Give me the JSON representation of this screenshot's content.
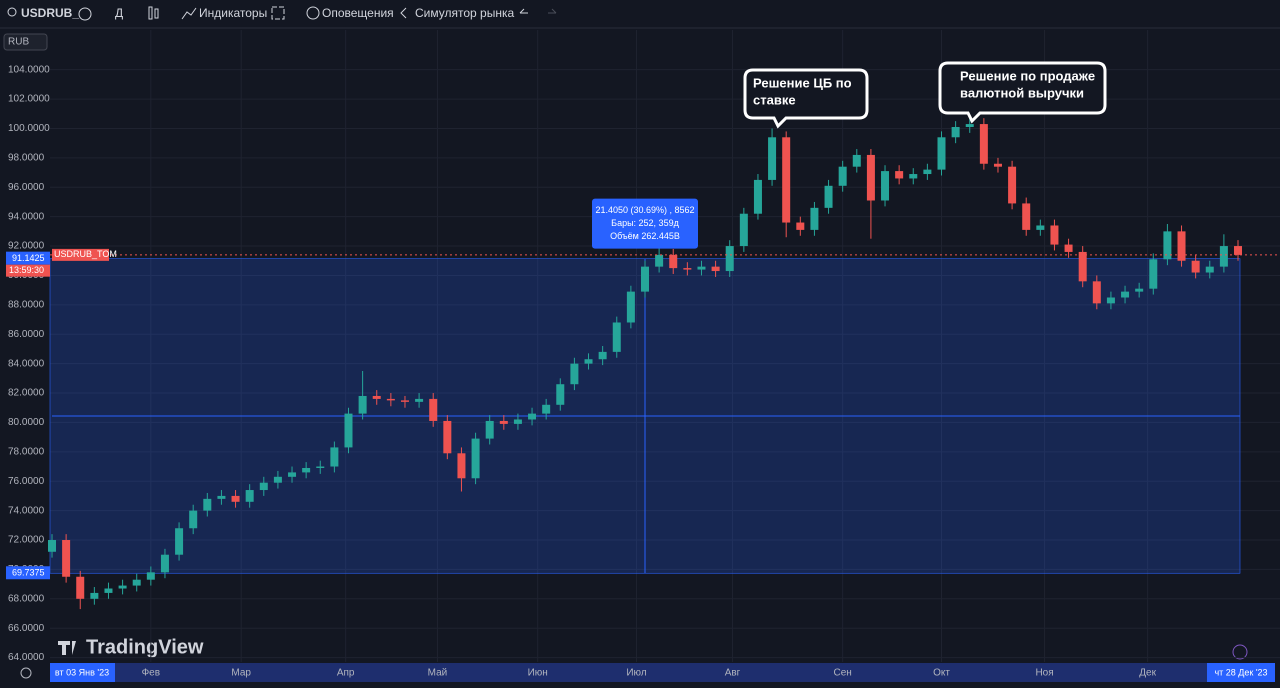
{
  "toolbar": {
    "symbol": "USDRUB_",
    "interval": "Д",
    "items": [
      "Индикаторы",
      "Оповещения",
      "Симулятор рынка"
    ]
  },
  "currency": "RUB",
  "brand": "TradingView",
  "chart_data": {
    "type": "candlestick",
    "symbol_label": "USDRUB_TOM",
    "countdown": "13:59:30",
    "open": [
      71.2,
      72.0,
      69.5,
      68.0,
      68.4,
      68.7,
      68.9,
      69.3,
      69.8,
      71.0,
      72.8,
      74.0,
      74.8,
      75.0,
      74.6,
      75.4,
      75.9,
      76.3,
      76.6,
      76.9,
      77.0,
      78.3,
      80.6,
      81.8,
      81.6,
      81.5,
      81.4,
      81.6,
      80.1,
      77.9,
      76.2,
      78.9,
      80.1,
      79.9,
      80.2,
      80.6,
      81.2,
      82.6,
      84.0,
      84.3,
      84.8,
      86.8,
      88.9,
      90.6,
      91.4,
      90.5,
      90.4,
      90.6,
      90.3,
      92.0,
      94.2,
      96.5,
      99.4,
      93.6,
      93.1,
      94.6,
      96.1,
      97.4,
      98.2,
      95.1,
      97.1,
      96.6,
      96.9,
      97.2,
      99.4,
      100.1,
      100.3,
      97.6,
      97.4,
      94.9,
      93.1,
      93.4,
      92.1,
      91.6,
      89.6,
      88.1,
      88.5,
      88.9,
      89.1,
      91.1,
      93.0,
      91.0,
      90.2,
      90.6,
      92.0
    ],
    "high": [
      72.4,
      72.4,
      69.9,
      68.8,
      69.1,
      69.3,
      69.7,
      70.2,
      71.4,
      73.2,
      74.4,
      75.2,
      75.4,
      75.4,
      75.8,
      76.3,
      76.7,
      77.0,
      77.3,
      77.4,
      78.7,
      81.0,
      83.5,
      82.2,
      82.0,
      81.8,
      82.0,
      82.0,
      80.5,
      78.3,
      79.3,
      80.5,
      80.5,
      80.6,
      81.0,
      81.6,
      83.0,
      84.4,
      84.7,
      85.2,
      87.2,
      89.3,
      91.0,
      92.0,
      91.8,
      90.9,
      91.0,
      91.0,
      92.4,
      94.6,
      96.9,
      100.0,
      99.8,
      94.0,
      95.0,
      96.5,
      97.8,
      98.6,
      98.6,
      97.5,
      97.5,
      97.3,
      97.6,
      99.8,
      100.5,
      101.5,
      100.7,
      98.0,
      97.8,
      95.3,
      93.8,
      93.8,
      92.5,
      92.0,
      90.0,
      88.9,
      89.3,
      89.5,
      91.5,
      93.5,
      93.4,
      91.4,
      91.0,
      92.8,
      92.4
    ],
    "low": [
      70.8,
      69.1,
      67.3,
      67.6,
      68.0,
      68.3,
      68.5,
      68.9,
      69.4,
      70.6,
      72.4,
      73.6,
      74.4,
      74.2,
      74.2,
      75.0,
      75.5,
      75.9,
      76.2,
      76.5,
      76.6,
      77.9,
      80.2,
      81.2,
      81.1,
      81.0,
      81.0,
      79.7,
      77.5,
      75.3,
      75.8,
      78.5,
      79.5,
      79.5,
      79.8,
      80.2,
      80.8,
      82.2,
      83.6,
      83.9,
      84.4,
      86.4,
      88.5,
      90.2,
      90.1,
      90.0,
      90.0,
      89.9,
      89.9,
      91.6,
      93.8,
      96.1,
      92.6,
      92.7,
      92.7,
      94.2,
      95.7,
      97.0,
      92.5,
      94.7,
      96.2,
      96.2,
      96.5,
      96.8,
      99.0,
      99.7,
      97.2,
      97.0,
      94.5,
      92.7,
      92.7,
      91.7,
      91.2,
      89.2,
      87.7,
      87.7,
      88.1,
      88.5,
      88.7,
      90.7,
      90.6,
      89.8,
      89.8,
      90.2,
      91.0
    ],
    "close": [
      72.0,
      69.5,
      68.0,
      68.4,
      68.7,
      68.9,
      69.3,
      69.8,
      71.0,
      72.8,
      74.0,
      74.8,
      75.0,
      74.6,
      75.4,
      75.9,
      76.3,
      76.6,
      76.9,
      77.0,
      78.3,
      80.6,
      81.8,
      81.6,
      81.5,
      81.4,
      81.6,
      80.1,
      77.9,
      76.2,
      78.9,
      80.1,
      79.9,
      80.2,
      80.6,
      81.2,
      82.6,
      84.0,
      84.3,
      84.8,
      86.8,
      88.9,
      90.6,
      91.4,
      90.5,
      90.4,
      90.6,
      90.3,
      92.0,
      94.2,
      96.5,
      99.4,
      93.6,
      93.1,
      94.6,
      96.1,
      97.4,
      98.2,
      95.1,
      97.1,
      96.6,
      96.9,
      97.2,
      99.4,
      100.1,
      100.3,
      97.6,
      97.4,
      94.9,
      93.1,
      93.4,
      92.1,
      91.6,
      89.6,
      88.1,
      88.5,
      88.9,
      89.1,
      91.1,
      93.0,
      91.0,
      90.2,
      90.6,
      92.0,
      91.4
    ],
    "xlim": [
      0,
      84
    ],
    "ylim": [
      63.7,
      106.7
    ],
    "yticks": [
      {
        "value": 64,
        "label": "64.0000"
      },
      {
        "value": 66,
        "label": "66.0000"
      },
      {
        "value": 68,
        "label": "68.0000"
      },
      {
        "value": 70,
        "label": "70.0000"
      },
      {
        "value": 72,
        "label": "72.0000"
      },
      {
        "value": 74,
        "label": "74.0000"
      },
      {
        "value": 76,
        "label": "76.0000"
      },
      {
        "value": 78,
        "label": "78.0000"
      },
      {
        "value": 80,
        "label": "80.0000"
      },
      {
        "value": 82,
        "label": "82.0000"
      },
      {
        "value": 84,
        "label": "84.0000"
      },
      {
        "value": 86,
        "label": "86.0000"
      },
      {
        "value": 88,
        "label": "88.0000"
      },
      {
        "value": 90,
        "label": "90.0000"
      },
      {
        "value": 92,
        "label": "92.0000"
      },
      {
        "value": 94,
        "label": "94.0000"
      },
      {
        "value": 96,
        "label": "96.0000"
      },
      {
        "value": 98,
        "label": "98.0000"
      },
      {
        "value": 100,
        "label": "100.0000"
      },
      {
        "value": 102,
        "label": "102.0000"
      },
      {
        "value": 104,
        "label": "104.0000"
      }
    ],
    "xticks": [
      {
        "value": 7,
        "label": "Фев"
      },
      {
        "value": 13.4,
        "label": "Мар"
      },
      {
        "value": 20.8,
        "label": "Апр"
      },
      {
        "value": 27.3,
        "label": "Май"
      },
      {
        "value": 34.4,
        "label": "Июн"
      },
      {
        "value": 41.4,
        "label": "Июл"
      },
      {
        "value": 48.2,
        "label": "Авг"
      },
      {
        "value": 56,
        "label": "Сен"
      },
      {
        "value": 63,
        "label": "Окт"
      },
      {
        "value": 70.3,
        "label": "Ноя"
      },
      {
        "value": 77.6,
        "label": "Дек"
      }
    ],
    "x_start_label": "вт 03 Янв '23",
    "x_end_label": "чт 28 Дек '23",
    "up_color": "#26a69a",
    "down_color": "#ef5350",
    "grid": true,
    "range": {
      "top": 91.1425,
      "bottom": 69.7375,
      "stats": [
        "21.4050 (30.69%) , 8562",
        "Бары: 252, 359д",
        "Объём 262.445B"
      ]
    },
    "annotations": [
      {
        "lines": [
          "Решение ЦБ по",
          "ставке"
        ]
      },
      {
        "lines": [
          "Решение по продаже",
          "валютной выручки"
        ]
      }
    ]
  }
}
